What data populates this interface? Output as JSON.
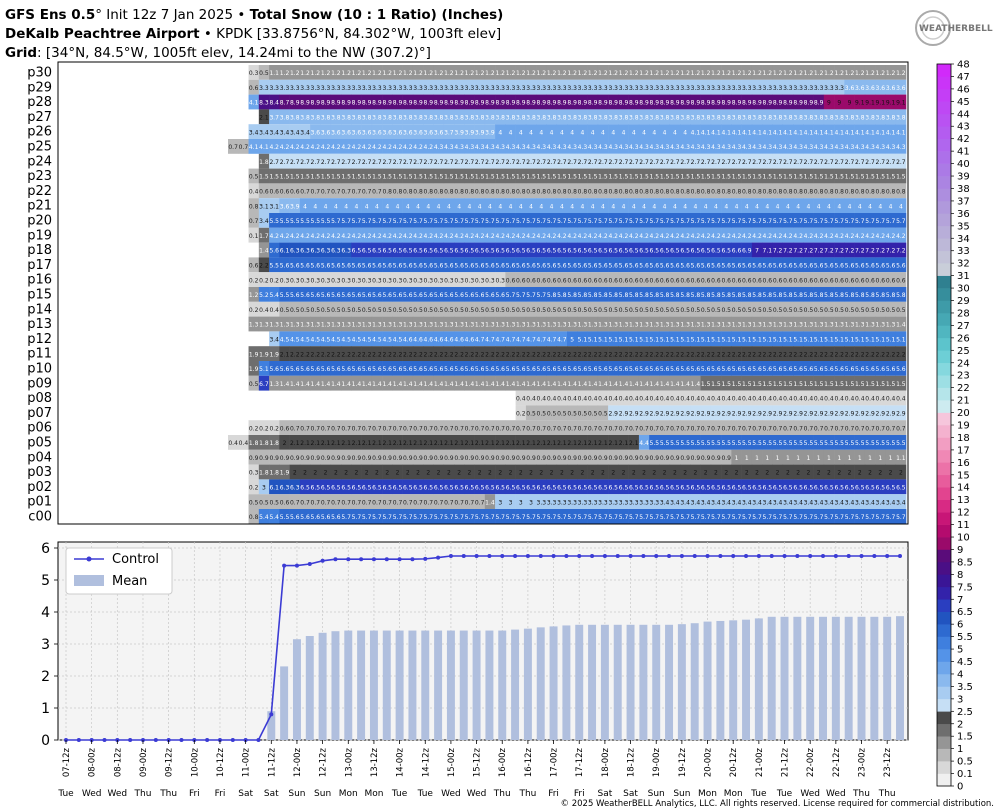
{
  "header": {
    "line1_bold": "GFS Ens 0.5",
    "line1_deg": "°",
    "line1_mid": " Init 12z 7 Jan 2025 • ",
    "line1_bold2": "Total Snow (10 : 1 Ratio) (Inches)",
    "line2_bold": "DeKalb Peachtree Airport",
    "line2_rest": " • KPDK [33.8756°N, 84.302°W, 1003ft elev]",
    "line3_bold": "Grid",
    "line3_rest": ": [34°N, 84.5°W, 1005ft elev, 14.24mi to the NW (307.2)°]"
  },
  "logo_text": "WEATHERBELL",
  "footer": "© 2025 WeatherBELL Analytics, LLC. All rights reserved. License required for commercial distribution.",
  "chart_data": [
    {
      "type": "heatmap",
      "title": "Total Snow (10 : 1 Ratio) (Inches)",
      "rows": [
        "p30",
        "p29",
        "p28",
        "p27",
        "p26",
        "p25",
        "p24",
        "p23",
        "p22",
        "p21",
        "p20",
        "p19",
        "p18",
        "p17",
        "p16",
        "p15",
        "p14",
        "p13",
        "p12",
        "p11",
        "p10",
        "p09",
        "p08",
        "p07",
        "p06",
        "p05",
        "p04",
        "p03",
        "p02",
        "p01",
        "c00"
      ],
      "row_values": {
        "p30": [
          [
            2,
            0.3
          ],
          [
            3,
            0.5
          ],
          [
            4,
            1.1
          ],
          [
            5,
            1.2
          ],
          [
            65,
            1.2
          ]
        ],
        "p29": [
          [
            2,
            0.6
          ],
          [
            3,
            3.3
          ],
          [
            60,
            3.6
          ]
        ],
        "p28": [
          [
            2,
            4.1
          ],
          [
            3,
            8.3
          ],
          [
            4,
            8.4
          ],
          [
            5,
            8.7
          ],
          [
            6,
            8.9
          ],
          [
            58,
            9
          ],
          [
            61,
            9.1
          ]
        ],
        "p27": [
          [
            3,
            2.1
          ],
          [
            4,
            3.7
          ],
          [
            5,
            3.8
          ],
          [
            65,
            3.8
          ]
        ],
        "p26": [
          [
            2,
            3.4
          ],
          [
            3,
            3.4
          ],
          [
            8,
            3.6
          ],
          [
            21,
            3.7
          ],
          [
            22,
            3.9
          ],
          [
            26,
            4
          ],
          [
            45,
            4.1
          ]
        ],
        "p25": [
          [
            0,
            0.7
          ],
          [
            2,
            4.1
          ],
          [
            4,
            4.2
          ],
          [
            20,
            4.3
          ],
          [
            65,
            4.3
          ]
        ],
        "p24": [
          [
            3,
            1.8
          ],
          [
            4,
            2.7
          ],
          [
            65,
            2.7
          ]
        ],
        "p23": [
          [
            2,
            0.5
          ],
          [
            3,
            1.5
          ],
          [
            65,
            1.5
          ]
        ],
        "p22": [
          [
            2,
            0.4
          ],
          [
            3,
            0.6
          ],
          [
            7,
            0.7
          ],
          [
            15,
            0.8
          ],
          [
            65,
            0.8
          ]
        ],
        "p21": [
          [
            2,
            0.8
          ],
          [
            3,
            3.1
          ],
          [
            4,
            3.1
          ],
          [
            5,
            3.6
          ],
          [
            6,
            3.9
          ],
          [
            7,
            4
          ],
          [
            65,
            4
          ]
        ],
        "p20": [
          [
            2,
            0.7
          ],
          [
            3,
            3.4
          ],
          [
            4,
            5.5
          ],
          [
            10,
            5.7
          ],
          [
            65,
            5.7
          ]
        ],
        "p19": [
          [
            2,
            0.1
          ],
          [
            3,
            1.7
          ],
          [
            4,
            4.2
          ],
          [
            65,
            4.2
          ]
        ],
        "p18": [
          [
            3,
            1.4
          ],
          [
            4,
            5.6
          ],
          [
            5,
            6.1
          ],
          [
            6,
            6.3
          ],
          [
            12,
            6.5
          ],
          [
            49,
            6.6
          ],
          [
            50,
            6.9
          ],
          [
            51,
            7
          ],
          [
            52,
            7.1
          ],
          [
            53,
            7.2
          ],
          [
            65,
            7.2
          ]
        ],
        "p17": [
          [
            2,
            0.6
          ],
          [
            3,
            2.2
          ],
          [
            4,
            5.5
          ],
          [
            5,
            5.6
          ],
          [
            65,
            5.6
          ]
        ],
        "p16": [
          [
            2,
            0.2
          ],
          [
            3,
            0.2
          ],
          [
            4,
            0.2
          ],
          [
            5,
            0.3
          ],
          [
            27,
            0.6
          ],
          [
            65,
            0.6
          ]
        ],
        "p15": [
          [
            2,
            1.2
          ],
          [
            3,
            5.2
          ],
          [
            4,
            5.4
          ],
          [
            5,
            5.5
          ],
          [
            6,
            5.6
          ],
          [
            27,
            5.7
          ],
          [
            31,
            5.8
          ],
          [
            65,
            5.8
          ]
        ],
        "p14": [
          [
            2,
            0.2
          ],
          [
            3,
            0.4
          ],
          [
            4,
            0.4
          ],
          [
            5,
            0.5
          ],
          [
            65,
            0.5
          ]
        ],
        "p13": [
          [
            2,
            1.3
          ],
          [
            3,
            1.3
          ],
          [
            65,
            1.4
          ]
        ],
        "p12": [
          [
            4,
            3.4
          ],
          [
            5,
            4.5
          ],
          [
            17,
            4.6
          ],
          [
            24,
            4.7
          ],
          [
            33,
            5
          ],
          [
            34,
            5.1
          ],
          [
            65,
            5.1
          ]
        ],
        "p11": [
          [
            2,
            1.9
          ],
          [
            3,
            1.9
          ],
          [
            4,
            1.9
          ],
          [
            5,
            2.1
          ],
          [
            6,
            2.2
          ],
          [
            65,
            2.2
          ]
        ],
        "p10": [
          [
            2,
            1.9
          ],
          [
            3,
            5.1
          ],
          [
            4,
            5.6
          ],
          [
            65,
            5.6
          ]
        ],
        "p09": [
          [
            2,
            0.5
          ],
          [
            3,
            6.7
          ],
          [
            4,
            1.3
          ],
          [
            5,
            1.4
          ],
          [
            46,
            1.5
          ],
          [
            65,
            1.5
          ]
        ],
        "p08": [
          [
            28,
            0.4
          ],
          [
            65,
            0.4
          ]
        ],
        "p07": [
          [
            28,
            0.2
          ],
          [
            29,
            0.5
          ],
          [
            37,
            2.9
          ],
          [
            65,
            2.9
          ]
        ],
        "p06": [
          [
            2,
            0.2
          ],
          [
            3,
            0.2
          ],
          [
            4,
            0.2
          ],
          [
            5,
            0.6
          ],
          [
            6,
            0.7
          ],
          [
            65,
            0.7
          ]
        ],
        "p05": [
          [
            0,
            0.4
          ],
          [
            2,
            1.8
          ],
          [
            3,
            1.8
          ],
          [
            4,
            1.8
          ],
          [
            5,
            2
          ],
          [
            6,
            2.1
          ],
          [
            40,
            4.4
          ],
          [
            41,
            5.5
          ],
          [
            65,
            5.5
          ]
        ],
        "p04": [
          [
            2,
            0.9
          ],
          [
            3,
            0.9
          ],
          [
            49,
            1
          ],
          [
            65,
            1.1
          ]
        ],
        "p03": [
          [
            2,
            0.3
          ],
          [
            3,
            1.8
          ],
          [
            4,
            1.8
          ],
          [
            5,
            1.9
          ],
          [
            6,
            2
          ],
          [
            65,
            2
          ]
        ],
        "p02": [
          [
            2,
            0.2
          ],
          [
            3,
            3
          ],
          [
            4,
            6.1
          ],
          [
            5,
            6.3
          ],
          [
            6,
            6.3
          ],
          [
            7,
            6.5
          ],
          [
            65,
            6.5
          ]
        ],
        "p01": [
          [
            2,
            0.5
          ],
          [
            3,
            0.5
          ],
          [
            4,
            0.5
          ],
          [
            5,
            0.6
          ],
          [
            6,
            0.7
          ],
          [
            25,
            1.4
          ],
          [
            26,
            3
          ],
          [
            30,
            3.3
          ],
          [
            42,
            3.4
          ],
          [
            65,
            3.4
          ]
        ],
        "c00": [
          [
            2,
            0.8
          ],
          [
            3,
            5.4
          ],
          [
            5,
            5.5
          ],
          [
            6,
            5.6
          ],
          [
            11,
            5.7
          ],
          [
            65,
            5.7
          ]
        ]
      },
      "colorbar_ticks": [
        "0",
        "0.1",
        "0.5",
        "1",
        "1.5",
        "2",
        "2.5",
        "3",
        "3.5",
        "4",
        "4.5",
        "5",
        "5.5",
        "6",
        "6.5",
        "7",
        "7.5",
        "8",
        "8.5",
        "9",
        "10",
        "11",
        "12",
        "13",
        "14",
        "15",
        "16",
        "17",
        "18",
        "19",
        "20",
        "21",
        "22",
        "23",
        "24",
        "25",
        "26",
        "27",
        "28",
        "29",
        "30",
        "31",
        "32",
        "33",
        "34",
        "35",
        "36",
        "37",
        "38",
        "39",
        "40",
        "41",
        "42",
        "43",
        "44",
        "45",
        "46",
        "47",
        "48"
      ]
    },
    {
      "type": "line",
      "series": [
        {
          "name": "Control",
          "type": "line",
          "color": "#3b3bd4"
        },
        {
          "name": "Mean",
          "type": "bar",
          "color": "#b0bfde"
        }
      ],
      "control_values": [
        [
          0,
          0
        ],
        [
          1,
          0
        ],
        [
          2,
          0
        ],
        [
          3,
          0
        ],
        [
          4,
          0
        ],
        [
          5,
          0
        ],
        [
          6,
          0
        ],
        [
          7,
          0
        ],
        [
          8,
          0
        ],
        [
          9,
          0
        ],
        [
          10,
          0
        ],
        [
          11,
          0
        ],
        [
          12,
          0
        ],
        [
          13,
          0
        ],
        [
          14,
          0
        ],
        [
          15,
          0
        ],
        [
          16,
          0.8
        ],
        [
          17,
          5.45
        ],
        [
          18,
          5.45
        ],
        [
          19,
          5.5
        ],
        [
          20,
          5.6
        ],
        [
          21,
          5.65
        ],
        [
          22,
          5.65
        ],
        [
          23,
          5.65
        ],
        [
          24,
          5.65
        ],
        [
          25,
          5.65
        ],
        [
          26,
          5.65
        ],
        [
          27,
          5.65
        ],
        [
          28,
          5.66
        ],
        [
          29,
          5.7
        ],
        [
          30,
          5.75
        ],
        [
          65,
          5.75
        ]
      ],
      "mean_values": [
        [
          16,
          0.9
        ],
        [
          17,
          2.3
        ],
        [
          18,
          3.15
        ],
        [
          19,
          3.25
        ],
        [
          20,
          3.35
        ],
        [
          21,
          3.4
        ],
        [
          22,
          3.42
        ],
        [
          35,
          3.45
        ],
        [
          36,
          3.48
        ],
        [
          37,
          3.52
        ],
        [
          38,
          3.55
        ],
        [
          39,
          3.58
        ],
        [
          40,
          3.6
        ],
        [
          48,
          3.62
        ],
        [
          49,
          3.65
        ],
        [
          50,
          3.7
        ],
        [
          51,
          3.72
        ],
        [
          52,
          3.74
        ],
        [
          53,
          3.76
        ],
        [
          54,
          3.8
        ],
        [
          55,
          3.85
        ],
        [
          65,
          3.87
        ]
      ],
      "ylim": [
        0,
        6
      ],
      "yticks": [
        "0",
        "1",
        "2",
        "3",
        "4",
        "5",
        "6"
      ],
      "x_date_labels": [
        "07-12z",
        "08-00z",
        "08-12z",
        "09-00z",
        "09-12z",
        "10-00z",
        "10-12z",
        "11-00z",
        "11-12z",
        "12-00z",
        "12-12z",
        "13-00z",
        "13-12z",
        "14-00z",
        "14-12z",
        "15-00z",
        "15-12z",
        "16-00z",
        "16-12z",
        "17-00z",
        "17-12z",
        "18-00z",
        "18-12z",
        "19-00z",
        "19-12z",
        "20-00z",
        "20-12z",
        "21-00z",
        "21-12z",
        "22-00z",
        "22-12z",
        "23-00z",
        "23-12z"
      ],
      "x_day_labels": [
        "Tue",
        "Wed",
        "Wed",
        "Thu",
        "Thu",
        "Fri",
        "Fri",
        "Sat",
        "Sat",
        "Sun",
        "Sun",
        "Mon",
        "Mon",
        "Tue",
        "Tue",
        "Wed",
        "Wed",
        "Thu",
        "Thu",
        "Fri",
        "Fri",
        "Sat",
        "Sat",
        "Sun",
        "Sun",
        "Mon",
        "Mon",
        "Tue",
        "Tue",
        "Wed",
        "Wed",
        "Thu",
        "Thu"
      ],
      "grid": true,
      "legend": "top-left"
    }
  ]
}
